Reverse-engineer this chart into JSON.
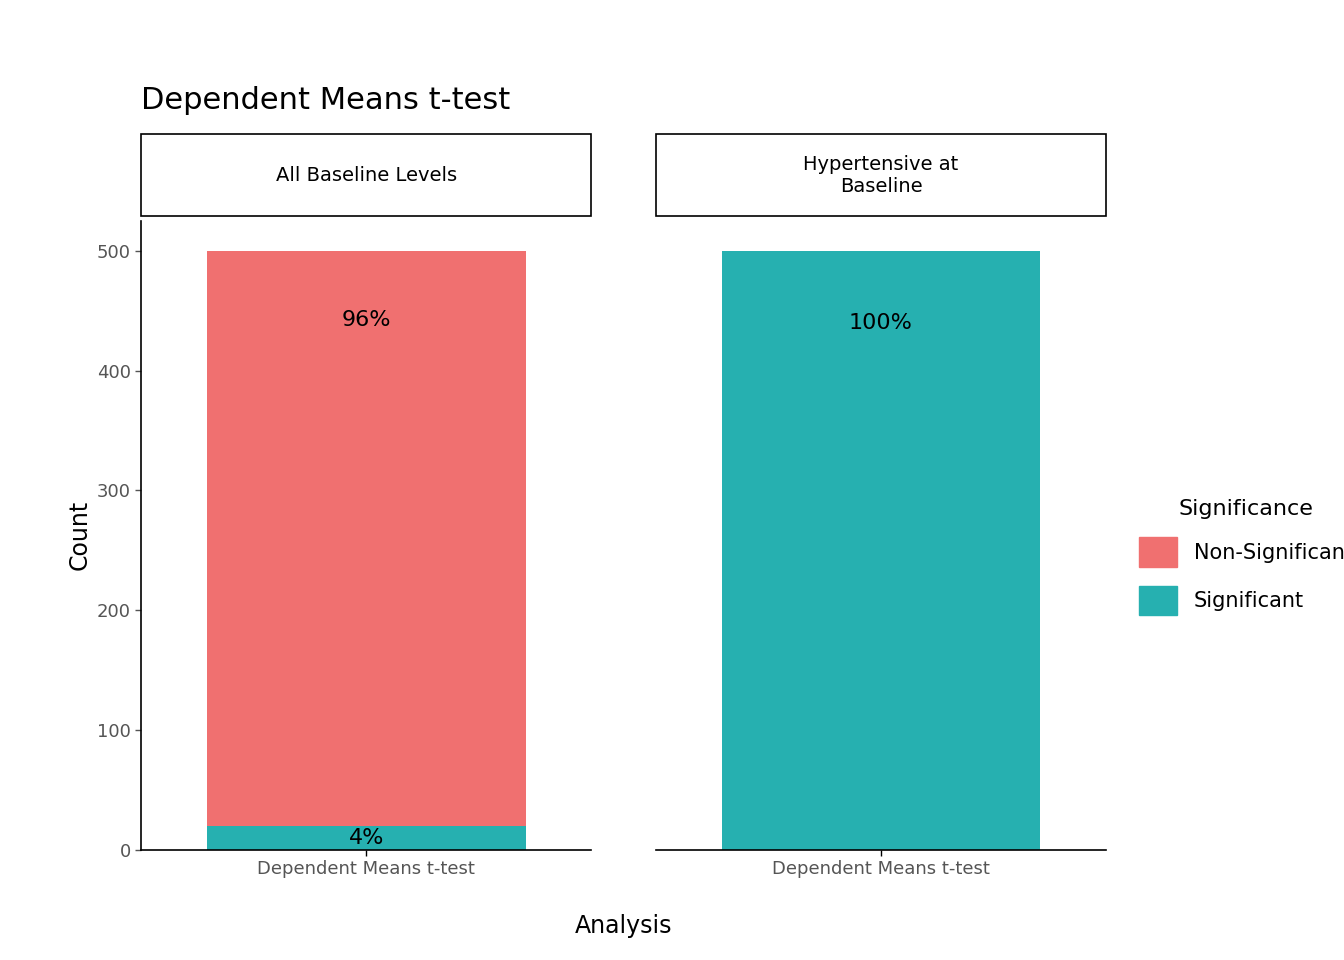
{
  "title": "Dependent Means t-test",
  "xlabel": "Analysis",
  "ylabel": "Count",
  "facet_labels": [
    "All Baseline Levels",
    "Hypertensive at\nBaseline"
  ],
  "x_tick_labels": [
    "Dependent Means t-test",
    "Dependent Means t-test"
  ],
  "bars": [
    {
      "facet": "All Baseline Levels",
      "significant_count": 20,
      "nonsignificant_count": 480,
      "total": 500,
      "sig_pct": "4%",
      "nonsig_pct": "96%"
    },
    {
      "facet": "Hypertensive at Baseline",
      "significant_count": 500,
      "nonsignificant_count": 0,
      "total": 500,
      "sig_pct": "100%",
      "nonsig_pct": null
    }
  ],
  "color_significant": "#26b0b0",
  "color_nonsignificant": "#f07070",
  "ylim": [
    0,
    525
  ],
  "yticks": [
    0,
    100,
    200,
    300,
    400,
    500
  ],
  "legend_title": "Significance",
  "legend_labels": [
    "Non-Significant",
    "Significant"
  ],
  "legend_colors": [
    "#f07070",
    "#26b0b0"
  ],
  "title_fontsize": 22,
  "axis_label_fontsize": 17,
  "tick_fontsize": 13,
  "legend_fontsize": 15,
  "legend_title_fontsize": 16,
  "pct_fontsize": 16,
  "facet_label_fontsize": 14,
  "background_color": "#ffffff",
  "bar_width": 0.85
}
